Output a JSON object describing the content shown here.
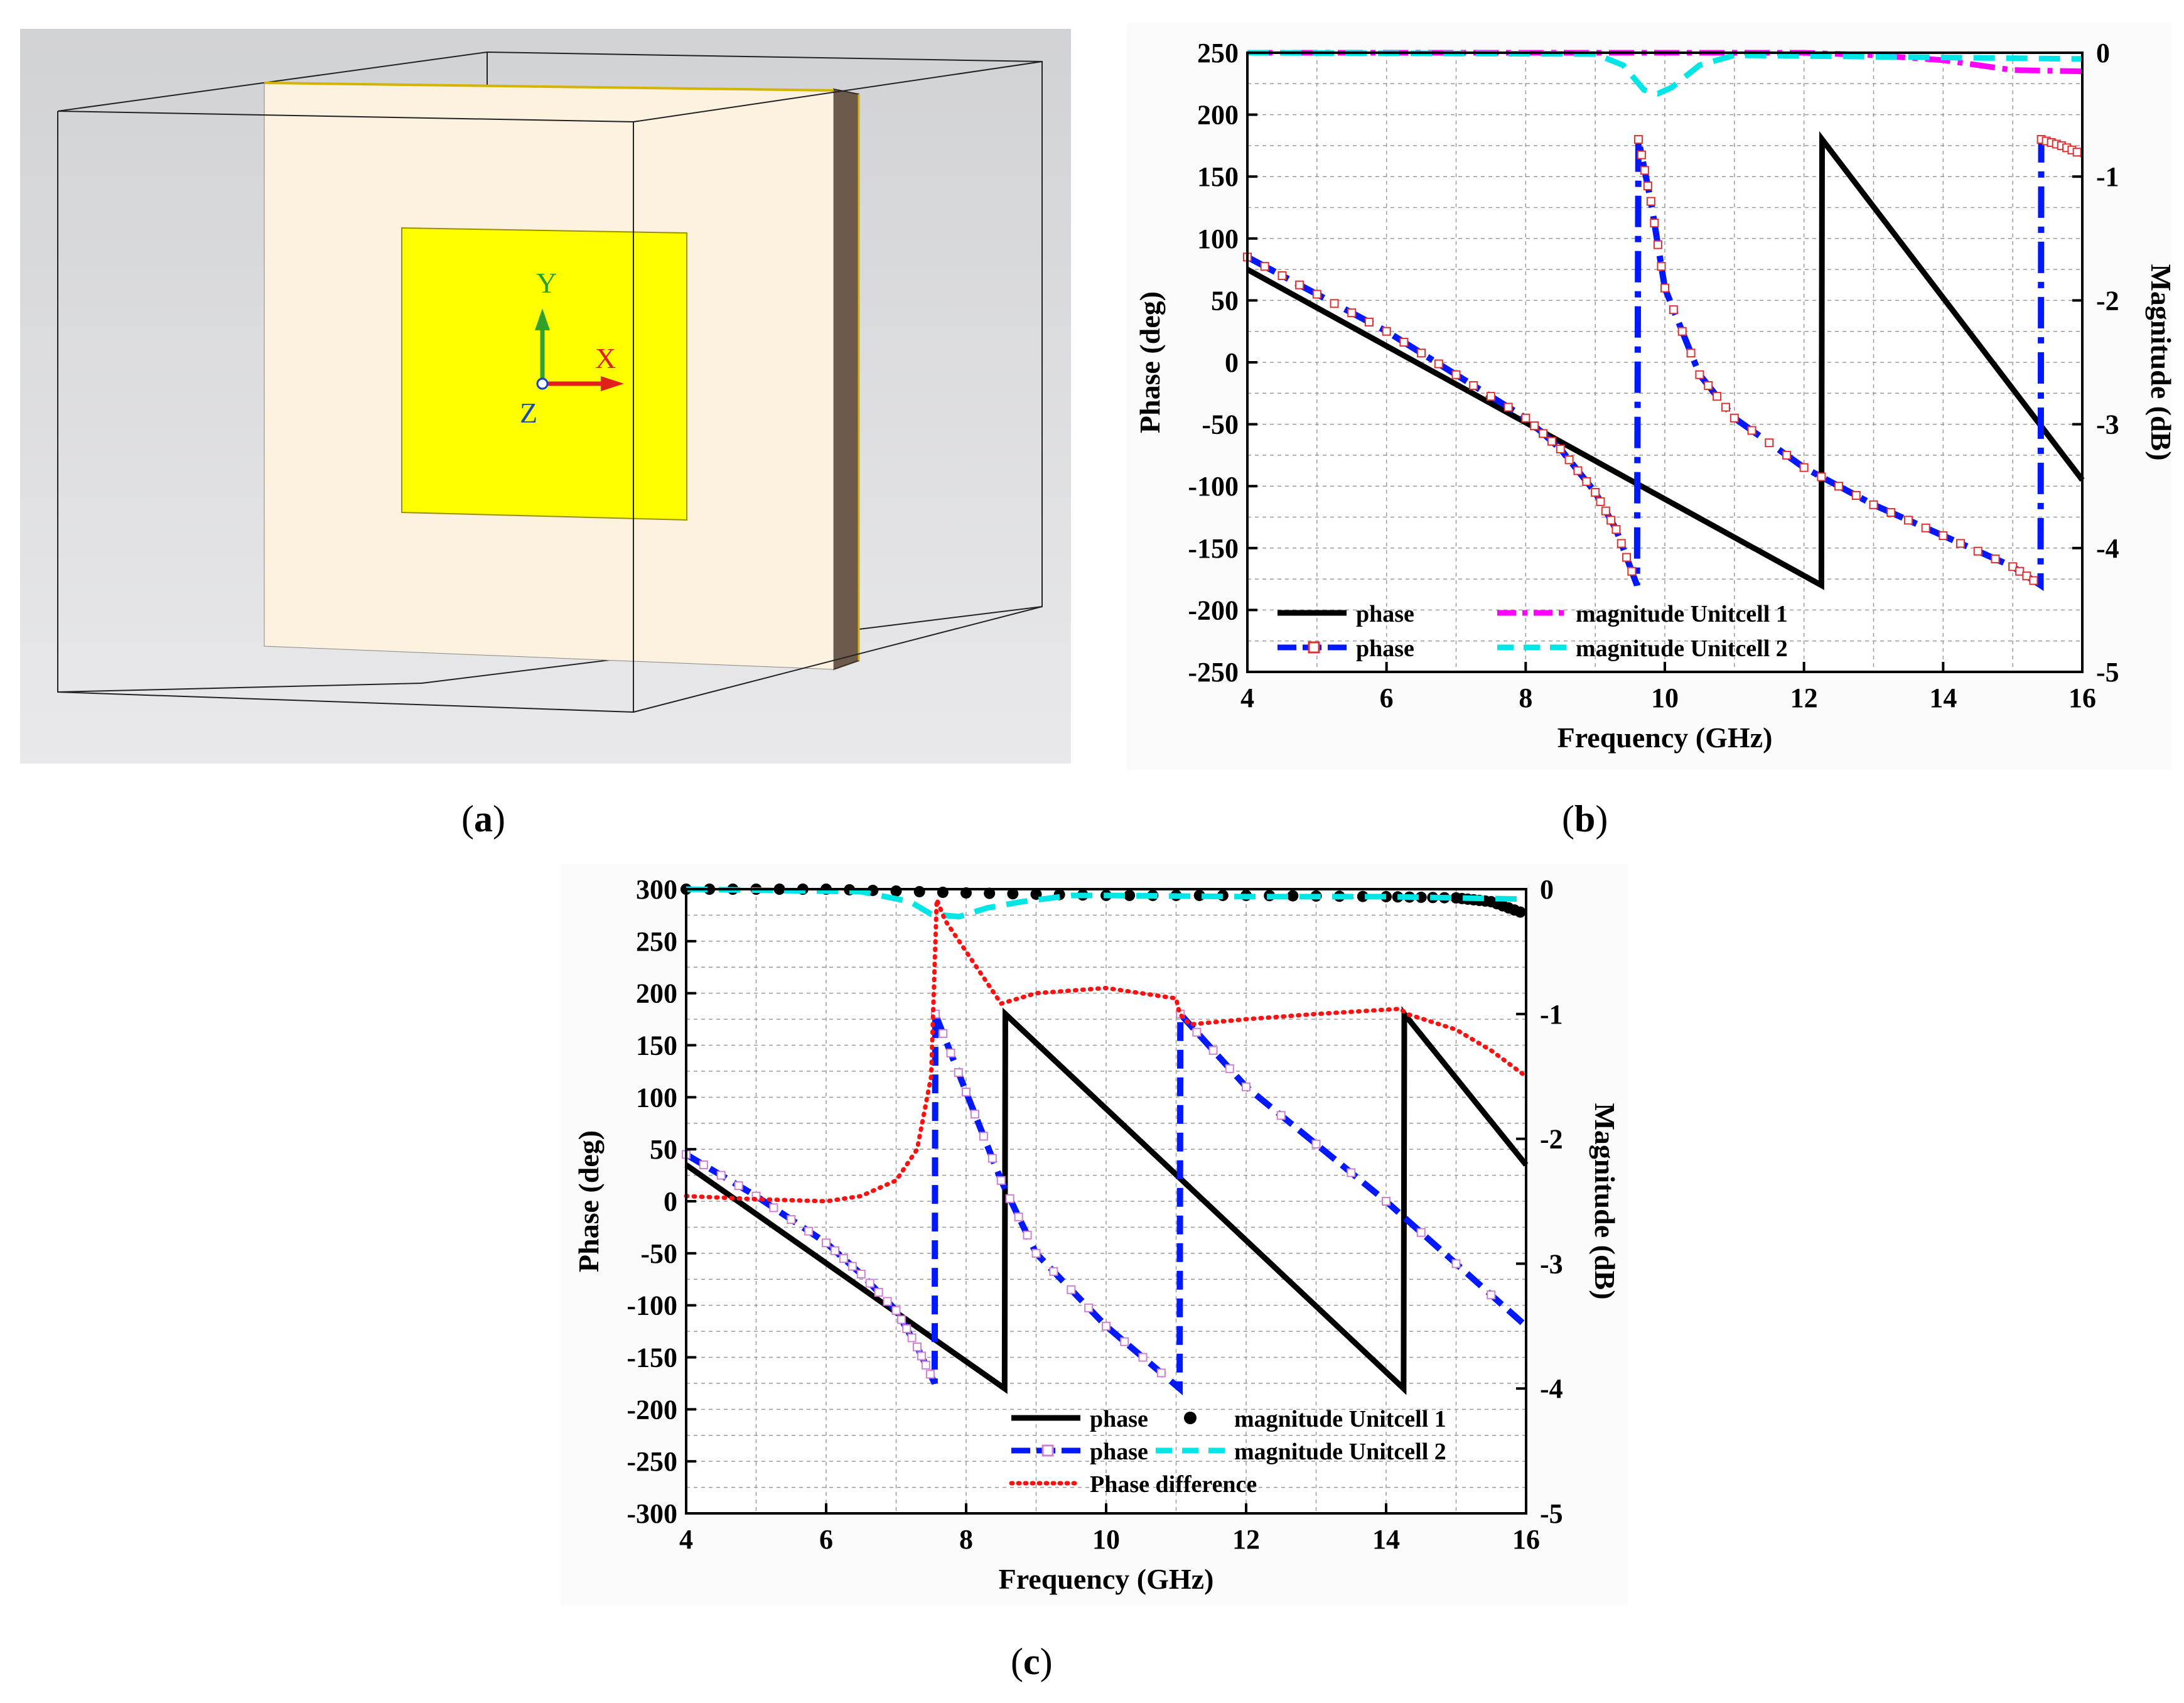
{
  "captions": {
    "a": "a",
    "b": "b",
    "c": "c"
  },
  "panel_a": {
    "axis_x": "X",
    "axis_y": "Y",
    "axis_z": "Z",
    "colors": {
      "background": "#d6d7db",
      "substrate": "#fdf1e0",
      "patch": "#ffff00",
      "edge": "#6e5a4a"
    }
  },
  "chart_data": [
    {
      "id": "b",
      "type": "line",
      "xlabel": "Frequency (GHz)",
      "ylabel": "Phase (deg)",
      "y2label": "Magnitude (dB)",
      "xlim": [
        4,
        16
      ],
      "ylim": [
        -250,
        250
      ],
      "y2lim": [
        -5,
        0
      ],
      "xticks": [
        "4",
        "6",
        "8",
        "10",
        "12",
        "14",
        "16"
      ],
      "yticks": [
        "250",
        "200",
        "150",
        "100",
        "50",
        "0",
        "-50",
        "-100",
        "-150",
        "-200",
        "-250"
      ],
      "y2ticks": [
        "0",
        "-1",
        "-2",
        "-3",
        "-4",
        "-5"
      ],
      "legend": [
        "phase",
        "magnitude Unitcell 1",
        "phase",
        "magnitude Unitcell 2"
      ],
      "series": [
        {
          "name": "phase",
          "axis": "left",
          "color": "#000000",
          "x": [
            4,
            12.25,
            12.26,
            16
          ],
          "y": [
            75,
            -180,
            180,
            -95
          ]
        },
        {
          "name": "phase (Unitcell 2)",
          "axis": "left",
          "color": "#0018ff",
          "x": [
            4,
            5,
            6,
            7,
            8,
            8.5,
            9,
            9.3,
            9.6,
            9.62,
            9.8,
            10,
            10.5,
            11,
            12,
            13,
            14,
            15,
            15.4,
            15.41,
            15.7,
            16
          ],
          "y": [
            85,
            55,
            25,
            -10,
            -45,
            -70,
            -105,
            -135,
            -180,
            180,
            130,
            60,
            -10,
            -45,
            -85,
            -115,
            -140,
            -165,
            -180,
            180,
            175,
            168
          ]
        },
        {
          "name": "magnitude Unitcell 1",
          "axis": "right",
          "color": "#ff00ff",
          "x": [
            4,
            10,
            12,
            13,
            14,
            15,
            16
          ],
          "y": [
            0,
            0,
            0,
            -0.02,
            -0.06,
            -0.14,
            -0.15
          ]
        },
        {
          "name": "magnitude Unitcell 2",
          "axis": "right",
          "color": "#00e5e5",
          "x": [
            4,
            9,
            9.4,
            9.7,
            9.9,
            10.1,
            10.5,
            11,
            16
          ],
          "y": [
            0,
            -0.01,
            -0.1,
            -0.3,
            -0.33,
            -0.28,
            -0.1,
            -0.02,
            -0.05
          ]
        }
      ]
    },
    {
      "id": "c",
      "type": "line",
      "xlabel": "Frequency (GHz)",
      "ylabel": "Phase (deg)",
      "y2label": "Magnitude (dB)",
      "xlim": [
        4,
        16
      ],
      "ylim": [
        -300,
        300
      ],
      "y2lim": [
        -5,
        0
      ],
      "xticks": [
        "4",
        "6",
        "8",
        "10",
        "12",
        "14",
        "16"
      ],
      "yticks": [
        "300",
        "250",
        "200",
        "150",
        "100",
        "50",
        "0",
        "-50",
        "-100",
        "-150",
        "-200",
        "-250",
        "-300"
      ],
      "y2ticks": [
        "0",
        "-1",
        "-2",
        "-3",
        "-4",
        "-5"
      ],
      "legend": [
        "phase",
        "magnitude Unitcell 1",
        "phase",
        "magnitude Unitcell 2",
        "Phase difference"
      ],
      "series": [
        {
          "name": "phase",
          "axis": "left",
          "color": "#000000",
          "x": [
            4,
            8.55,
            8.56,
            14.25,
            14.26,
            16
          ],
          "y": [
            35,
            -180,
            180,
            -180,
            180,
            35
          ]
        },
        {
          "name": "phase (Unitcell 2)",
          "axis": "left",
          "color": "#0018ff",
          "x": [
            4,
            5,
            6,
            6.5,
            7,
            7.3,
            7.55,
            7.56,
            8,
            8.5,
            9,
            10,
            11.05,
            11.06,
            12,
            14,
            16
          ],
          "y": [
            45,
            5,
            -40,
            -70,
            -105,
            -140,
            -175,
            180,
            105,
            20,
            -50,
            -120,
            -180,
            180,
            110,
            0,
            -120
          ]
        },
        {
          "name": "magnitude Unitcell 1",
          "axis": "right",
          "color": "#000000",
          "x": [
            4,
            6,
            8,
            10,
            12,
            14,
            15,
            15.5,
            16
          ],
          "y": [
            0,
            0,
            -0.03,
            -0.05,
            -0.05,
            -0.06,
            -0.07,
            -0.1,
            -0.2
          ]
        },
        {
          "name": "magnitude Unitcell 2",
          "axis": "right",
          "color": "#00e5e5",
          "x": [
            4,
            6.5,
            7.2,
            7.5,
            7.9,
            8.3,
            8.8,
            9.5,
            10,
            12,
            14,
            16
          ],
          "y": [
            0,
            -0.02,
            -0.1,
            -0.2,
            -0.22,
            -0.15,
            -0.1,
            -0.05,
            -0.05,
            -0.06,
            -0.06,
            -0.08
          ]
        },
        {
          "name": "Phase difference",
          "axis": "left",
          "color": "#ff1010",
          "x": [
            4,
            5,
            6,
            6.5,
            7,
            7.3,
            7.5,
            7.58,
            7.7,
            8,
            8.5,
            9,
            10,
            10.5,
            11,
            11.05,
            11.2,
            12,
            13,
            14.2,
            14.3,
            15,
            15.5,
            16
          ],
          "y": [
            5,
            2,
            0,
            5,
            20,
            50,
            120,
            290,
            270,
            240,
            190,
            200,
            205,
            200,
            195,
            180,
            170,
            175,
            180,
            185,
            180,
            165,
            145,
            120
          ]
        }
      ]
    }
  ]
}
